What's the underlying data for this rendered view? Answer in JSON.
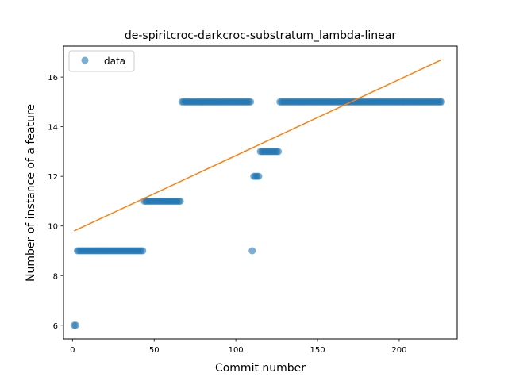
{
  "chart_data": {
    "type": "scatter",
    "title": "de-spiritcroc-darkcroc-substratum_lambda-linear",
    "xlabel": "Commit number",
    "ylabel": "Number of instance of a feature",
    "xlim": [
      -5.5,
      235.5
    ],
    "ylim": [
      5.45,
      17.25
    ],
    "xticks": [
      0,
      50,
      100,
      150,
      200
    ],
    "yticks": [
      6,
      8,
      10,
      12,
      14,
      16
    ],
    "grid": false,
    "legend_position": "top-left",
    "series": [
      {
        "name": "data",
        "kind": "points",
        "color": "#1f77b4",
        "runs": [
          {
            "x_start": 1,
            "x_end": 2,
            "y": 6
          },
          {
            "x_start": 3,
            "x_end": 43,
            "y": 9
          },
          {
            "x_start": 44,
            "x_end": 66,
            "y": 11
          },
          {
            "x_start": 67,
            "x_end": 109,
            "y": 15
          },
          {
            "x_start": 110,
            "x_end": 110,
            "y": 9
          },
          {
            "x_start": 111,
            "x_end": 114,
            "y": 12
          },
          {
            "x_start": 115,
            "x_end": 126,
            "y": 13
          },
          {
            "x_start": 127,
            "x_end": 226,
            "y": 15
          }
        ]
      },
      {
        "kind": "line",
        "color": "#ff7f0e",
        "x": [
          1,
          226
        ],
        "y": [
          9.8,
          16.7
        ]
      }
    ]
  }
}
